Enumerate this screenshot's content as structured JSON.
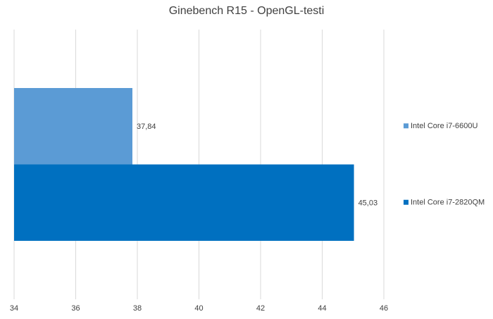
{
  "chart_data": {
    "type": "barh",
    "title": "Ginebench R15 - OpenGL-testi",
    "categories": [
      null
    ],
    "series": [
      {
        "name": "Intel Core i7-6600U",
        "color": "#5b9bd5",
        "values": [
          37.84
        ],
        "value_labels": [
          "37,84"
        ]
      },
      {
        "name": "Intel Core i7-2820QM",
        "color": "#0070c0",
        "values": [
          45.03
        ],
        "value_labels": [
          "45,03"
        ]
      }
    ],
    "xlim": [
      34,
      46
    ],
    "xticks": [
      34,
      36,
      38,
      40,
      42,
      44,
      46
    ],
    "grid": true,
    "legend": "right"
  }
}
